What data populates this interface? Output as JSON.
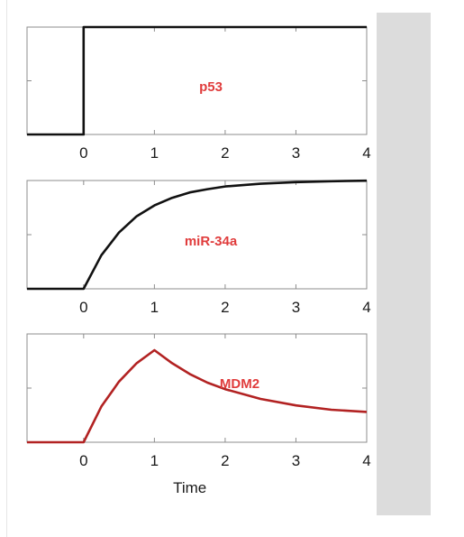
{
  "chart_data": [
    {
      "type": "line",
      "series": [
        {
          "name": "p53",
          "color": "#111111",
          "x": [
            -0.8,
            0,
            0,
            4
          ],
          "y": [
            0,
            0,
            1,
            1
          ]
        }
      ],
      "xlim": [
        -0.8,
        4
      ],
      "ylim": [
        0,
        1
      ],
      "xticks": [
        "0",
        "1",
        "2",
        "3",
        "4"
      ],
      "grid": false
    },
    {
      "type": "line",
      "series": [
        {
          "name": "miR-34a",
          "color": "#111111",
          "x": [
            -0.8,
            0,
            0.25,
            0.5,
            0.75,
            1,
            1.25,
            1.5,
            1.75,
            2,
            2.5,
            3,
            3.5,
            4
          ],
          "y": [
            0,
            0,
            0.31,
            0.52,
            0.67,
            0.77,
            0.84,
            0.89,
            0.92,
            0.945,
            0.97,
            0.985,
            0.993,
            0.998
          ]
        }
      ],
      "xlim": [
        -0.8,
        4
      ],
      "ylim": [
        0,
        1
      ],
      "xticks": [
        "0",
        "1",
        "2",
        "3",
        "4"
      ],
      "grid": false
    },
    {
      "type": "line",
      "series": [
        {
          "name": "MDM2",
          "color": "#b22222",
          "x": [
            -0.8,
            0,
            0.25,
            0.5,
            0.75,
            1,
            1.25,
            1.5,
            1.75,
            2,
            2.5,
            3,
            3.5,
            4
          ],
          "y": [
            0,
            0,
            0.33,
            0.56,
            0.73,
            0.85,
            0.73,
            0.63,
            0.55,
            0.49,
            0.4,
            0.34,
            0.3,
            0.28
          ]
        }
      ],
      "xlim": [
        -0.8,
        4
      ],
      "ylim": [
        0,
        1
      ],
      "xticks": [
        "0",
        "1",
        "2",
        "3",
        "4"
      ],
      "xlabel": "Time",
      "grid": false
    }
  ],
  "style": {
    "label_color": "#e03c3c"
  }
}
